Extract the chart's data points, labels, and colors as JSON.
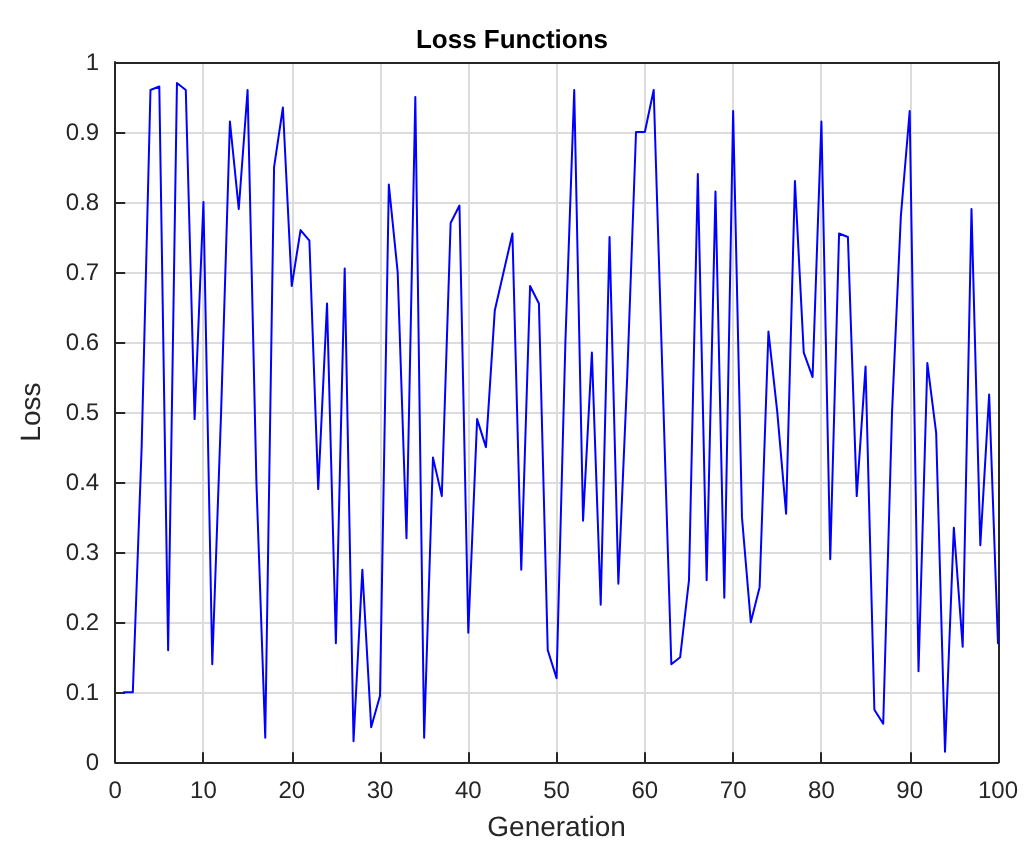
{
  "chart_data": {
    "type": "line",
    "title": "Loss Functions",
    "xlabel": "Generation",
    "ylabel": "Loss",
    "x": [
      1,
      2,
      3,
      4,
      5,
      6,
      7,
      8,
      9,
      10,
      11,
      12,
      13,
      14,
      15,
      16,
      17,
      18,
      19,
      20,
      21,
      22,
      23,
      24,
      25,
      26,
      27,
      28,
      29,
      30,
      31,
      32,
      33,
      34,
      35,
      36,
      37,
      38,
      39,
      40,
      41,
      42,
      43,
      44,
      45,
      46,
      47,
      48,
      49,
      50,
      51,
      52,
      53,
      54,
      55,
      56,
      57,
      58,
      59,
      60,
      61,
      62,
      63,
      64,
      65,
      66,
      67,
      68,
      69,
      70,
      71,
      72,
      73,
      74,
      75,
      76,
      77,
      78,
      79,
      80,
      81,
      82,
      83,
      84,
      85,
      86,
      87,
      88,
      89,
      90,
      91,
      92,
      93,
      94,
      95,
      96,
      97,
      98,
      99,
      100
    ],
    "series": [
      {
        "color": "#0000ff",
        "values": [
          0.1,
          0.1,
          0.45,
          0.96,
          0.965,
          0.16,
          0.97,
          0.96,
          0.49,
          0.8,
          0.14,
          0.5,
          0.915,
          0.79,
          0.96,
          0.4,
          0.035,
          0.85,
          0.935,
          0.68,
          0.76,
          0.745,
          0.39,
          0.655,
          0.17,
          0.705,
          0.03,
          0.275,
          0.05,
          0.095,
          0.825,
          0.7,
          0.32,
          0.95,
          0.035,
          0.435,
          0.38,
          0.77,
          0.795,
          0.185,
          0.49,
          0.45,
          0.645,
          0.7,
          0.755,
          0.275,
          0.68,
          0.655,
          0.16,
          0.12,
          0.6,
          0.96,
          0.345,
          0.585,
          0.225,
          0.75,
          0.255,
          0.55,
          0.9,
          0.9,
          0.96,
          0.55,
          0.14,
          0.15,
          0.26,
          0.84,
          0.26,
          0.815,
          0.235,
          0.93,
          0.35,
          0.2,
          0.25,
          0.615,
          0.5,
          0.355,
          0.83,
          0.585,
          0.55,
          0.915,
          0.29,
          0.755,
          0.75,
          0.38,
          0.565,
          0.075,
          0.055,
          0.5,
          0.78,
          0.93,
          0.13,
          0.57,
          0.47,
          0.015,
          0.335,
          0.165,
          0.79,
          0.31,
          0.525,
          0.17
        ]
      }
    ],
    "xlim": [
      0,
      100
    ],
    "xticks": [
      0,
      10,
      20,
      30,
      40,
      50,
      60,
      70,
      80,
      90,
      100
    ],
    "ylim": [
      0,
      1
    ],
    "yticks": [
      0,
      0.1,
      0.2,
      0.3,
      0.4,
      0.5,
      0.6,
      0.7,
      0.8,
      0.9,
      1
    ],
    "grid": true,
    "marker": "none",
    "line_style": "solid"
  }
}
